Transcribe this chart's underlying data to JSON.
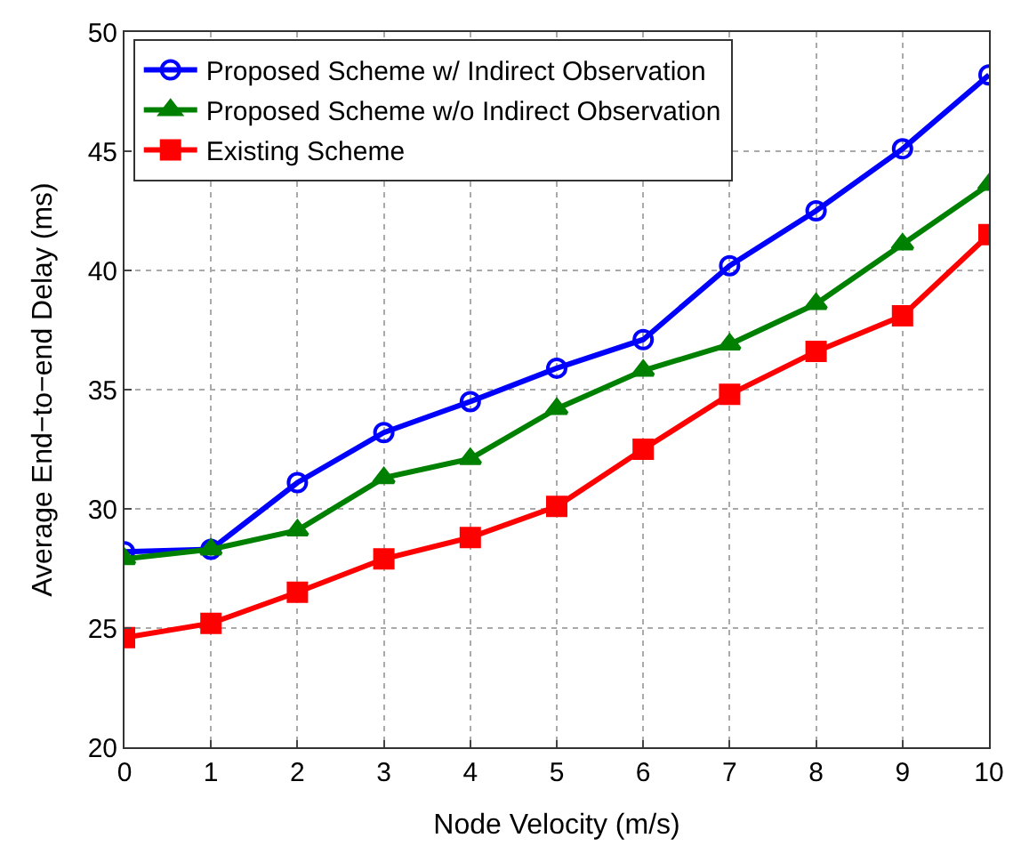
{
  "chart_data": {
    "type": "line",
    "xlabel": "Node Velocity (m/s)",
    "ylabel": "Average End−to−end Delay (ms)",
    "x": [
      0,
      1,
      2,
      3,
      4,
      5,
      6,
      7,
      8,
      9,
      10
    ],
    "series": [
      {
        "name": "Proposed Scheme w/ Indirect Observation",
        "color": "#0000ff",
        "marker": "circle",
        "values": [
          28.2,
          28.3,
          31.1,
          33.2,
          34.5,
          35.9,
          37.1,
          40.2,
          42.5,
          45.1,
          48.2
        ]
      },
      {
        "name": "Proposed Scheme w/o Indirect Observation",
        "color": "#008000",
        "marker": "triangle",
        "values": [
          27.9,
          28.3,
          29.1,
          31.3,
          32.1,
          34.2,
          35.8,
          36.9,
          38.6,
          41.1,
          43.6
        ]
      },
      {
        "name": "Existing Scheme",
        "color": "#ff0000",
        "marker": "square",
        "values": [
          24.6,
          25.2,
          26.5,
          27.9,
          28.8,
          30.1,
          32.5,
          34.8,
          36.6,
          38.1,
          41.5
        ]
      }
    ],
    "xlim": [
      0,
      10
    ],
    "xticks": [
      0,
      1,
      2,
      3,
      4,
      5,
      6,
      7,
      8,
      9,
      10
    ],
    "ylim": [
      20,
      50
    ],
    "yticks": [
      20,
      25,
      30,
      35,
      40,
      45,
      50
    ],
    "grid": true,
    "legend": "top left",
    "line_style": "solid"
  }
}
